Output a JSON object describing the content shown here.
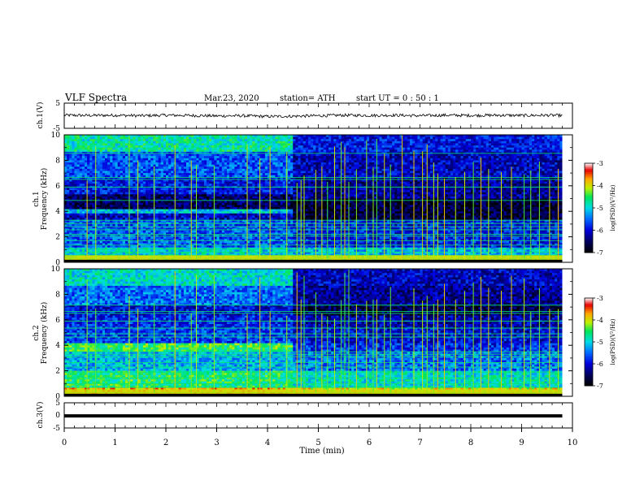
{
  "header": {
    "title": "VLF  Spectra",
    "date": "Mar.23, 2020",
    "station": "station= ATH",
    "start": "start  UT  =   0 : 50 : 1"
  },
  "chart_data": [
    {
      "type": "line",
      "panel": "ch1-waveform",
      "ylabel": "ch.1(V)",
      "ylim": [
        -5,
        5
      ],
      "y_ticks": [
        "5",
        "-5"
      ],
      "x": [
        0,
        0.5,
        1,
        1.5,
        2,
        2.5,
        3,
        3.5,
        4,
        4.5,
        5,
        5.5,
        6,
        6.5,
        7,
        7.5,
        8,
        8.5,
        9,
        9.5,
        9.8
      ],
      "values": [
        0.2,
        0.1,
        0.2,
        0.0,
        0.2,
        0.1,
        -0.1,
        0.0,
        -0.3,
        -0.2,
        0.0,
        0.2,
        0.1,
        0.2,
        0.0,
        0.2,
        0.1,
        0.2,
        0.1,
        0.2,
        0.1
      ],
      "noise_amplitude": 0.6,
      "color": "#000000"
    },
    {
      "type": "heatmap",
      "panel": "ch1-spectrogram",
      "ylabel": "ch.1\nFrequency (kHz)",
      "ylim": [
        0,
        10
      ],
      "y_ticks": [
        "0",
        "2",
        "4",
        "6",
        "8",
        "10"
      ],
      "xlim": [
        0,
        9.8
      ],
      "colorbar": {
        "label": "log(PSD)(V²/Hz)",
        "range": [
          -7,
          -3
        ],
        "ticks": [
          "-3",
          "-4",
          "-5",
          "-6",
          "-7"
        ]
      },
      "transition_min": 4.5,
      "bands_before": [
        [
          0,
          0.5,
          -4.2
        ],
        [
          0.5,
          1.2,
          -5.0
        ],
        [
          1.2,
          3.4,
          -5.6
        ],
        [
          3.4,
          3.8,
          -6.1
        ],
        [
          3.8,
          4.2,
          -5.1
        ],
        [
          4.2,
          5.4,
          -6.5
        ],
        [
          5.4,
          6.6,
          -5.9
        ],
        [
          6.6,
          8.6,
          -5.6
        ],
        [
          8.6,
          10,
          -4.8
        ]
      ],
      "bands_after": [
        [
          0,
          0.5,
          -4.3
        ],
        [
          0.5,
          1.2,
          -5.2
        ],
        [
          1.2,
          3.4,
          -5.9
        ],
        [
          3.4,
          5.0,
          -6.7
        ],
        [
          5.0,
          6.6,
          -6.3
        ],
        [
          6.6,
          8.6,
          -6.1
        ],
        [
          8.6,
          10,
          -5.9
        ]
      ],
      "lines_khz": [
        0.3,
        0.55,
        0.8,
        1.05,
        1.35,
        1.7,
        2.05,
        2.2,
        2.55,
        2.8,
        3.05,
        3.3,
        4.85,
        5.9,
        6.5,
        6.65,
        8.55
      ],
      "spikes_min": [
        0.45,
        0.62,
        1.28,
        1.45,
        1.77,
        2.18,
        2.5,
        2.6,
        2.95,
        3.6,
        3.85,
        4.05,
        4.38,
        4.58,
        4.66,
        4.72,
        4.95,
        5.07,
        5.18,
        5.32,
        5.45,
        5.52,
        5.6,
        5.75,
        5.95,
        6.08,
        6.15,
        6.3,
        6.42,
        6.65,
        6.88,
        7.05,
        7.14,
        7.27,
        7.35,
        7.48,
        7.7,
        7.88,
        8.05,
        8.2,
        8.35,
        8.6,
        8.8,
        9.05,
        9.18,
        9.35,
        9.55,
        9.72
      ]
    },
    {
      "type": "heatmap",
      "panel": "ch2-spectrogram",
      "ylabel": "ch.2\nFrequency (kHz)",
      "ylim": [
        0,
        10
      ],
      "y_ticks": [
        "0",
        "2",
        "4",
        "6",
        "8",
        "10"
      ],
      "xlim": [
        0,
        9.8
      ],
      "colorbar": {
        "label": "log(PSD)(V²/Hz)",
        "range": [
          -7,
          -3
        ],
        "ticks": [
          "-3",
          "-4",
          "-5",
          "-6",
          "-7"
        ]
      },
      "transition_min": 4.5,
      "bands_before": [
        [
          0,
          0.6,
          -3.8
        ],
        [
          0.6,
          2.0,
          -4.6
        ],
        [
          2.0,
          3.5,
          -5.2
        ],
        [
          3.5,
          4.2,
          -4.5
        ],
        [
          4.2,
          5.3,
          -5.7
        ],
        [
          5.3,
          6.4,
          -5.8
        ],
        [
          6.4,
          7.2,
          -6.0
        ],
        [
          7.2,
          8.6,
          -5.5
        ],
        [
          8.6,
          10,
          -4.9
        ]
      ],
      "bands_after": [
        [
          0,
          0.6,
          -4.0
        ],
        [
          0.6,
          2.0,
          -4.9
        ],
        [
          2.0,
          3.5,
          -5.5
        ],
        [
          3.5,
          4.2,
          -5.8
        ],
        [
          4.2,
          5.3,
          -6.0
        ],
        [
          5.3,
          6.4,
          -6.2
        ],
        [
          6.4,
          7.2,
          -6.6
        ],
        [
          7.2,
          8.6,
          -6.3
        ],
        [
          8.6,
          10,
          -6.1
        ]
      ],
      "lines_khz": [
        0.3,
        0.7,
        1.0,
        1.45,
        1.9,
        2.3,
        2.65,
        3.1,
        3.3,
        3.5,
        4.65,
        4.9,
        5.35,
        5.9,
        6.5,
        6.65,
        7.15
      ],
      "spikes_min": [
        0.45,
        0.62,
        1.28,
        1.45,
        1.77,
        2.18,
        2.5,
        2.6,
        2.95,
        3.6,
        3.85,
        4.05,
        4.38,
        4.58,
        4.66,
        4.72,
        4.95,
        5.07,
        5.18,
        5.32,
        5.45,
        5.52,
        5.6,
        5.75,
        5.95,
        6.08,
        6.15,
        6.3,
        6.42,
        6.65,
        6.88,
        7.05,
        7.14,
        7.27,
        7.35,
        7.48,
        7.7,
        7.88,
        8.05,
        8.2,
        8.35,
        8.6,
        8.8,
        9.05,
        9.18,
        9.35,
        9.55,
        9.72
      ]
    },
    {
      "type": "line",
      "panel": "ch3-waveform",
      "ylabel": "ch.3(V)",
      "ylim": [
        -5,
        5
      ],
      "y_ticks": [
        "5",
        "0",
        "-5"
      ],
      "x": [
        0,
        9.8
      ],
      "values": [
        -0.2,
        -0.2
      ],
      "color": "#000000"
    }
  ],
  "x_axis": {
    "label": "Time  (min)",
    "ticks": [
      "0",
      "1",
      "2",
      "3",
      "4",
      "5",
      "6",
      "7",
      "8",
      "9",
      "10"
    ],
    "xlim": [
      0,
      10
    ]
  }
}
